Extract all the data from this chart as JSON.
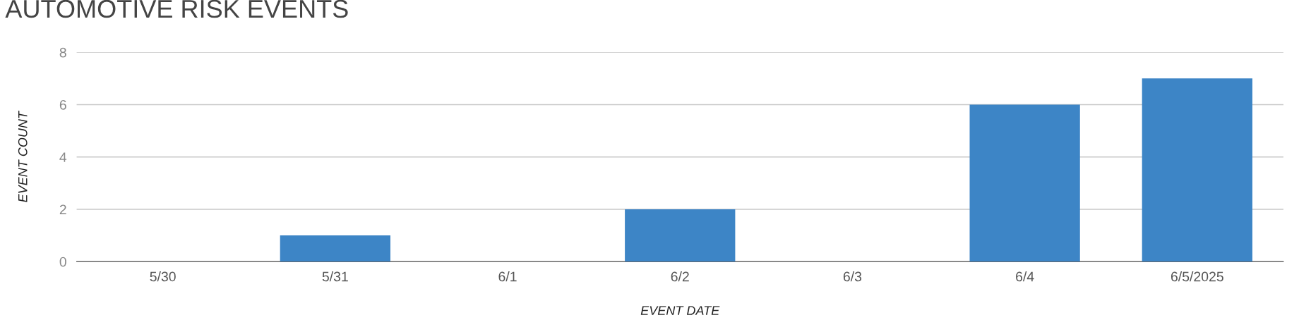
{
  "chart_data": {
    "type": "bar",
    "title": "AUTOMOTIVE RISK EVENTS",
    "xlabel": "EVENT DATE",
    "ylabel": "EVENT COUNT",
    "categories": [
      "5/30",
      "5/31",
      "6/1",
      "6/2",
      "6/3",
      "6/4",
      "6/5/2025"
    ],
    "values": [
      0,
      1,
      0,
      2,
      0,
      6,
      7
    ],
    "color": "#3d85c6",
    "ylim": [
      0,
      8
    ],
    "yticks": [
      0,
      2,
      4,
      6,
      8
    ],
    "grid": "y",
    "legend": false
  }
}
